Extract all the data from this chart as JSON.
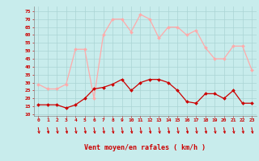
{
  "x": [
    0,
    1,
    2,
    3,
    4,
    5,
    6,
    7,
    8,
    9,
    10,
    11,
    12,
    13,
    14,
    15,
    16,
    17,
    18,
    19,
    20,
    21,
    22,
    23
  ],
  "avg_wind": [
    16,
    16,
    16,
    14,
    16,
    20,
    26,
    27,
    29,
    32,
    25,
    30,
    32,
    32,
    30,
    25,
    18,
    17,
    23,
    23,
    20,
    25,
    17,
    17
  ],
  "gust_wind": [
    29,
    26,
    26,
    29,
    51,
    51,
    20,
    60,
    70,
    70,
    62,
    73,
    70,
    58,
    65,
    65,
    60,
    63,
    52,
    45,
    45,
    53,
    53,
    38
  ],
  "avg_color": "#cc0000",
  "gust_color": "#ffaaaa",
  "bg_color": "#c8ecec",
  "grid_color": "#aad4d4",
  "xlabel": "Vent moyen/en rafales ( km/h )",
  "xlabel_color": "#cc0000",
  "yticks": [
    10,
    15,
    20,
    25,
    30,
    35,
    40,
    45,
    50,
    55,
    60,
    65,
    70,
    75
  ],
  "ylim": [
    9,
    78
  ],
  "xlim": [
    -0.5,
    23.5
  ],
  "arrow_char": "↓"
}
